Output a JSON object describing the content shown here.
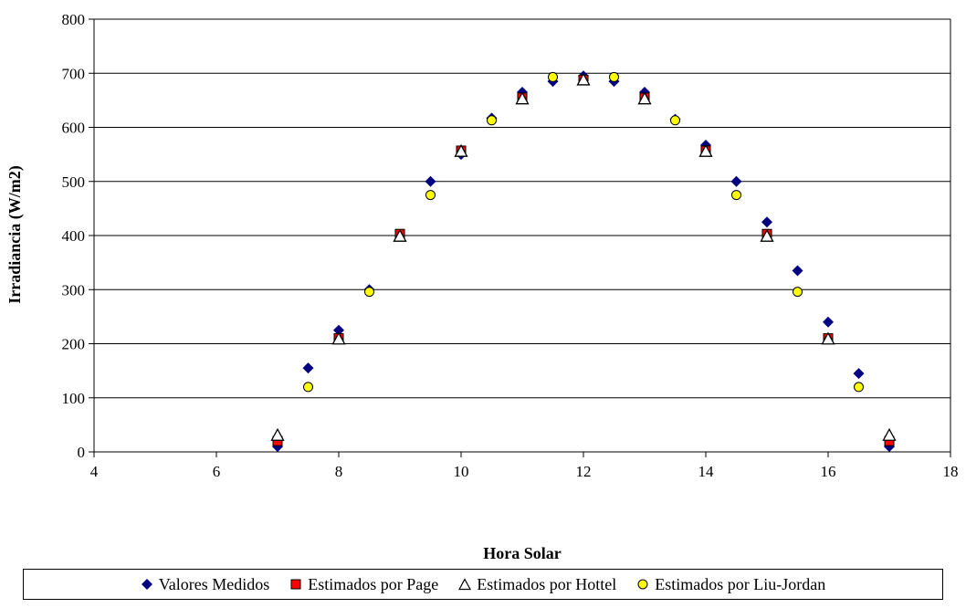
{
  "chart_data": {
    "type": "scatter",
    "xlabel": "Hora Solar",
    "ylabel": "Irradiancia (W/m2)",
    "xlim": [
      4,
      18
    ],
    "ylim": [
      0,
      800
    ],
    "xticks": [
      "4",
      "6",
      "8",
      "10",
      "12",
      "14",
      "16",
      "18"
    ],
    "yticks": [
      "0",
      "100",
      "200",
      "300",
      "400",
      "500",
      "600",
      "700",
      "800"
    ],
    "grid": "horizontal",
    "legend_position": "bottom",
    "series": [
      {
        "name": "Valores Medidos",
        "marker": "diamond",
        "color": "#000080",
        "x": [
          7,
          7.5,
          8,
          8.5,
          9,
          9.5,
          10,
          10.5,
          11,
          11.5,
          12,
          12.5,
          13,
          13.5,
          14,
          14.5,
          15,
          15.5,
          16,
          16.5,
          17
        ],
        "y": [
          10,
          155,
          225,
          300,
          400,
          500,
          550,
          617,
          665,
          685,
          695,
          685,
          665,
          615,
          567,
          500,
          425,
          335,
          240,
          145,
          10
        ]
      },
      {
        "name": "Estimados por  Page",
        "marker": "square",
        "color": "#ff0000",
        "x": [
          7,
          8,
          9,
          10,
          11,
          12,
          13,
          14,
          15,
          16,
          17
        ],
        "y": [
          20,
          210,
          403,
          557,
          655,
          688,
          655,
          557,
          403,
          210,
          20
        ]
      },
      {
        "name": "Estimados por Hottel",
        "marker": "triangle",
        "color": "#ffffff",
        "x": [
          7,
          8,
          9,
          10,
          11,
          12,
          13,
          14,
          15,
          16,
          17
        ],
        "y": [
          30,
          208,
          398,
          555,
          652,
          687,
          652,
          555,
          398,
          208,
          30
        ]
      },
      {
        "name": "Estimados por Liu-Jordan",
        "marker": "circle",
        "color": "#ffff00",
        "x": [
          7.5,
          8.5,
          9.5,
          10.5,
          11.5,
          12.5,
          13.5,
          14.5,
          15.5,
          16.5
        ],
        "y": [
          120,
          296,
          475,
          613,
          693,
          693,
          613,
          475,
          296,
          120
        ]
      }
    ]
  }
}
